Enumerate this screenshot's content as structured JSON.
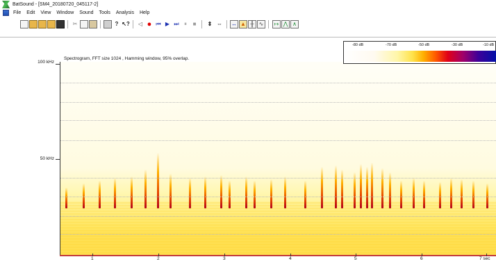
{
  "window": {
    "title": "BatSound - [SM4_20180720_045117-2]"
  },
  "menu": {
    "items": [
      "File",
      "Edit",
      "View",
      "Window",
      "Sound",
      "Tools",
      "Analysis",
      "Help"
    ]
  },
  "toolbar": {
    "icons": [
      "new-file-icon",
      "open-folder-icon",
      "save-icon",
      "save-as-icon",
      "disk-icon",
      "cut-icon",
      "copy-icon",
      "paste-icon",
      "print-icon",
      "help-icon",
      "context-help-icon",
      "speaker-icon",
      "record-icon",
      "rewind-icon",
      "play-icon",
      "fast-forward-icon",
      "pause-icon",
      "stop-icon",
      "zoom-in-vertical-icon",
      "zoom-out-vertical-icon",
      "zoom-horizontal-icon",
      "spectrogram-icon",
      "power-spectrum-icon",
      "waveform-icon",
      "marker-icon",
      "peak-icon",
      "spectrum-icon"
    ]
  },
  "color_scale": {
    "labels": [
      "-80 dB",
      "-70 dB",
      "-50 dB",
      "-30 dB",
      "-10 dB"
    ],
    "colors": {
      "low": "#ffffff",
      "yellow": "#ffe24a",
      "orange": "#ff5a00",
      "red": "#e00018",
      "purple": "#a0006a",
      "blue": "#0010a8"
    }
  },
  "spectrogram": {
    "caption": "Spectrogram, FFT size 1024 , Hamming window, 95% overlap.",
    "y_axis": {
      "labels": [
        "100 kHz",
        "50 kHz"
      ]
    },
    "x_axis": {
      "labels": [
        "1",
        "2",
        "3",
        "4",
        "5",
        "6",
        "7 sec"
      ]
    }
  }
}
